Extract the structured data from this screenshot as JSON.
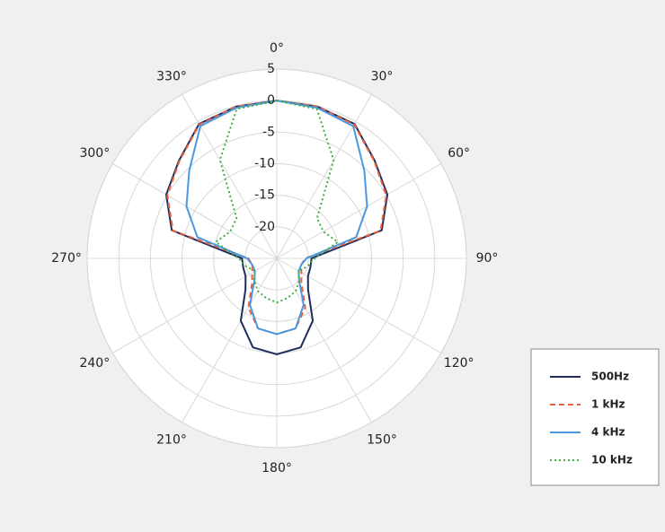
{
  "chart_data": {
    "type": "polar",
    "theta": [
      0,
      15,
      30,
      45,
      60,
      75,
      90,
      105,
      120,
      135,
      150,
      165,
      180,
      195,
      210,
      225,
      240,
      255,
      270,
      285,
      300,
      315,
      330,
      345,
      360
    ],
    "rlim": [
      -25,
      5
    ],
    "rticks": [
      -20,
      -15,
      -10,
      -5,
      0,
      5
    ],
    "thetaticks": [
      {
        "value": 0,
        "label": "0°"
      },
      {
        "value": 30,
        "label": "30°"
      },
      {
        "value": 60,
        "label": "60°"
      },
      {
        "value": 90,
        "label": "90°"
      },
      {
        "value": 120,
        "label": "120°"
      },
      {
        "value": 150,
        "label": "150°"
      },
      {
        "value": 180,
        "label": "180°"
      },
      {
        "value": 210,
        "label": "210°"
      },
      {
        "value": 240,
        "label": "240°"
      },
      {
        "value": 270,
        "label": "270°"
      },
      {
        "value": 300,
        "label": "300°"
      },
      {
        "value": 330,
        "label": "330°"
      }
    ],
    "grid": true,
    "legend": "right",
    "series": [
      {
        "name": "500Hz",
        "color": "#1f2d5c",
        "linestyle": "solid",
        "values": [
          0,
          -0.1,
          -0.4,
          -3.1,
          -4.8,
          -7.8,
          -19.5,
          -19.5,
          -19.3,
          -18,
          -13.6,
          -10.4,
          -9.8,
          -10.4,
          -13.6,
          -18,
          -19.3,
          -19.5,
          -19.5,
          -7.8,
          -4.8,
          -3.1,
          -0.4,
          -0.1,
          0
        ]
      },
      {
        "name": "1 kHz",
        "color": "#e8603c",
        "linestyle": "dashed",
        "values": [
          0,
          -0.1,
          -0.5,
          -3.2,
          -5,
          -8,
          -20.5,
          -21,
          -20.5,
          -19.5,
          -16,
          -13.5,
          -13,
          -13.5,
          -16,
          -19.5,
          -20.5,
          -21,
          -20.5,
          -8,
          -5,
          -3.2,
          -0.5,
          -0.1,
          0
        ]
      },
      {
        "name": "4 kHz",
        "color": "#4a98e0",
        "linestyle": "solid",
        "values": [
          0,
          -0.3,
          -0.8,
          -5.4,
          -8.5,
          -12,
          -20.3,
          -21,
          -21,
          -20,
          -16.5,
          -13.5,
          -13,
          -13.5,
          -16.5,
          -20,
          -21,
          -21,
          -20.3,
          -12,
          -8.5,
          -5.4,
          -0.8,
          -0.3,
          0
        ]
      },
      {
        "name": "10 kHz",
        "color": "#3cb043",
        "linestyle": "dotted",
        "values": [
          0,
          -0.5,
          -7,
          -16,
          -16.5,
          -15,
          -19,
          -20,
          -21,
          -20,
          -19,
          -18.5,
          -18,
          -18.5,
          -19,
          -20,
          -21,
          -20,
          -19,
          -15,
          -16.5,
          -16,
          -7,
          -0.5,
          0
        ]
      }
    ]
  }
}
